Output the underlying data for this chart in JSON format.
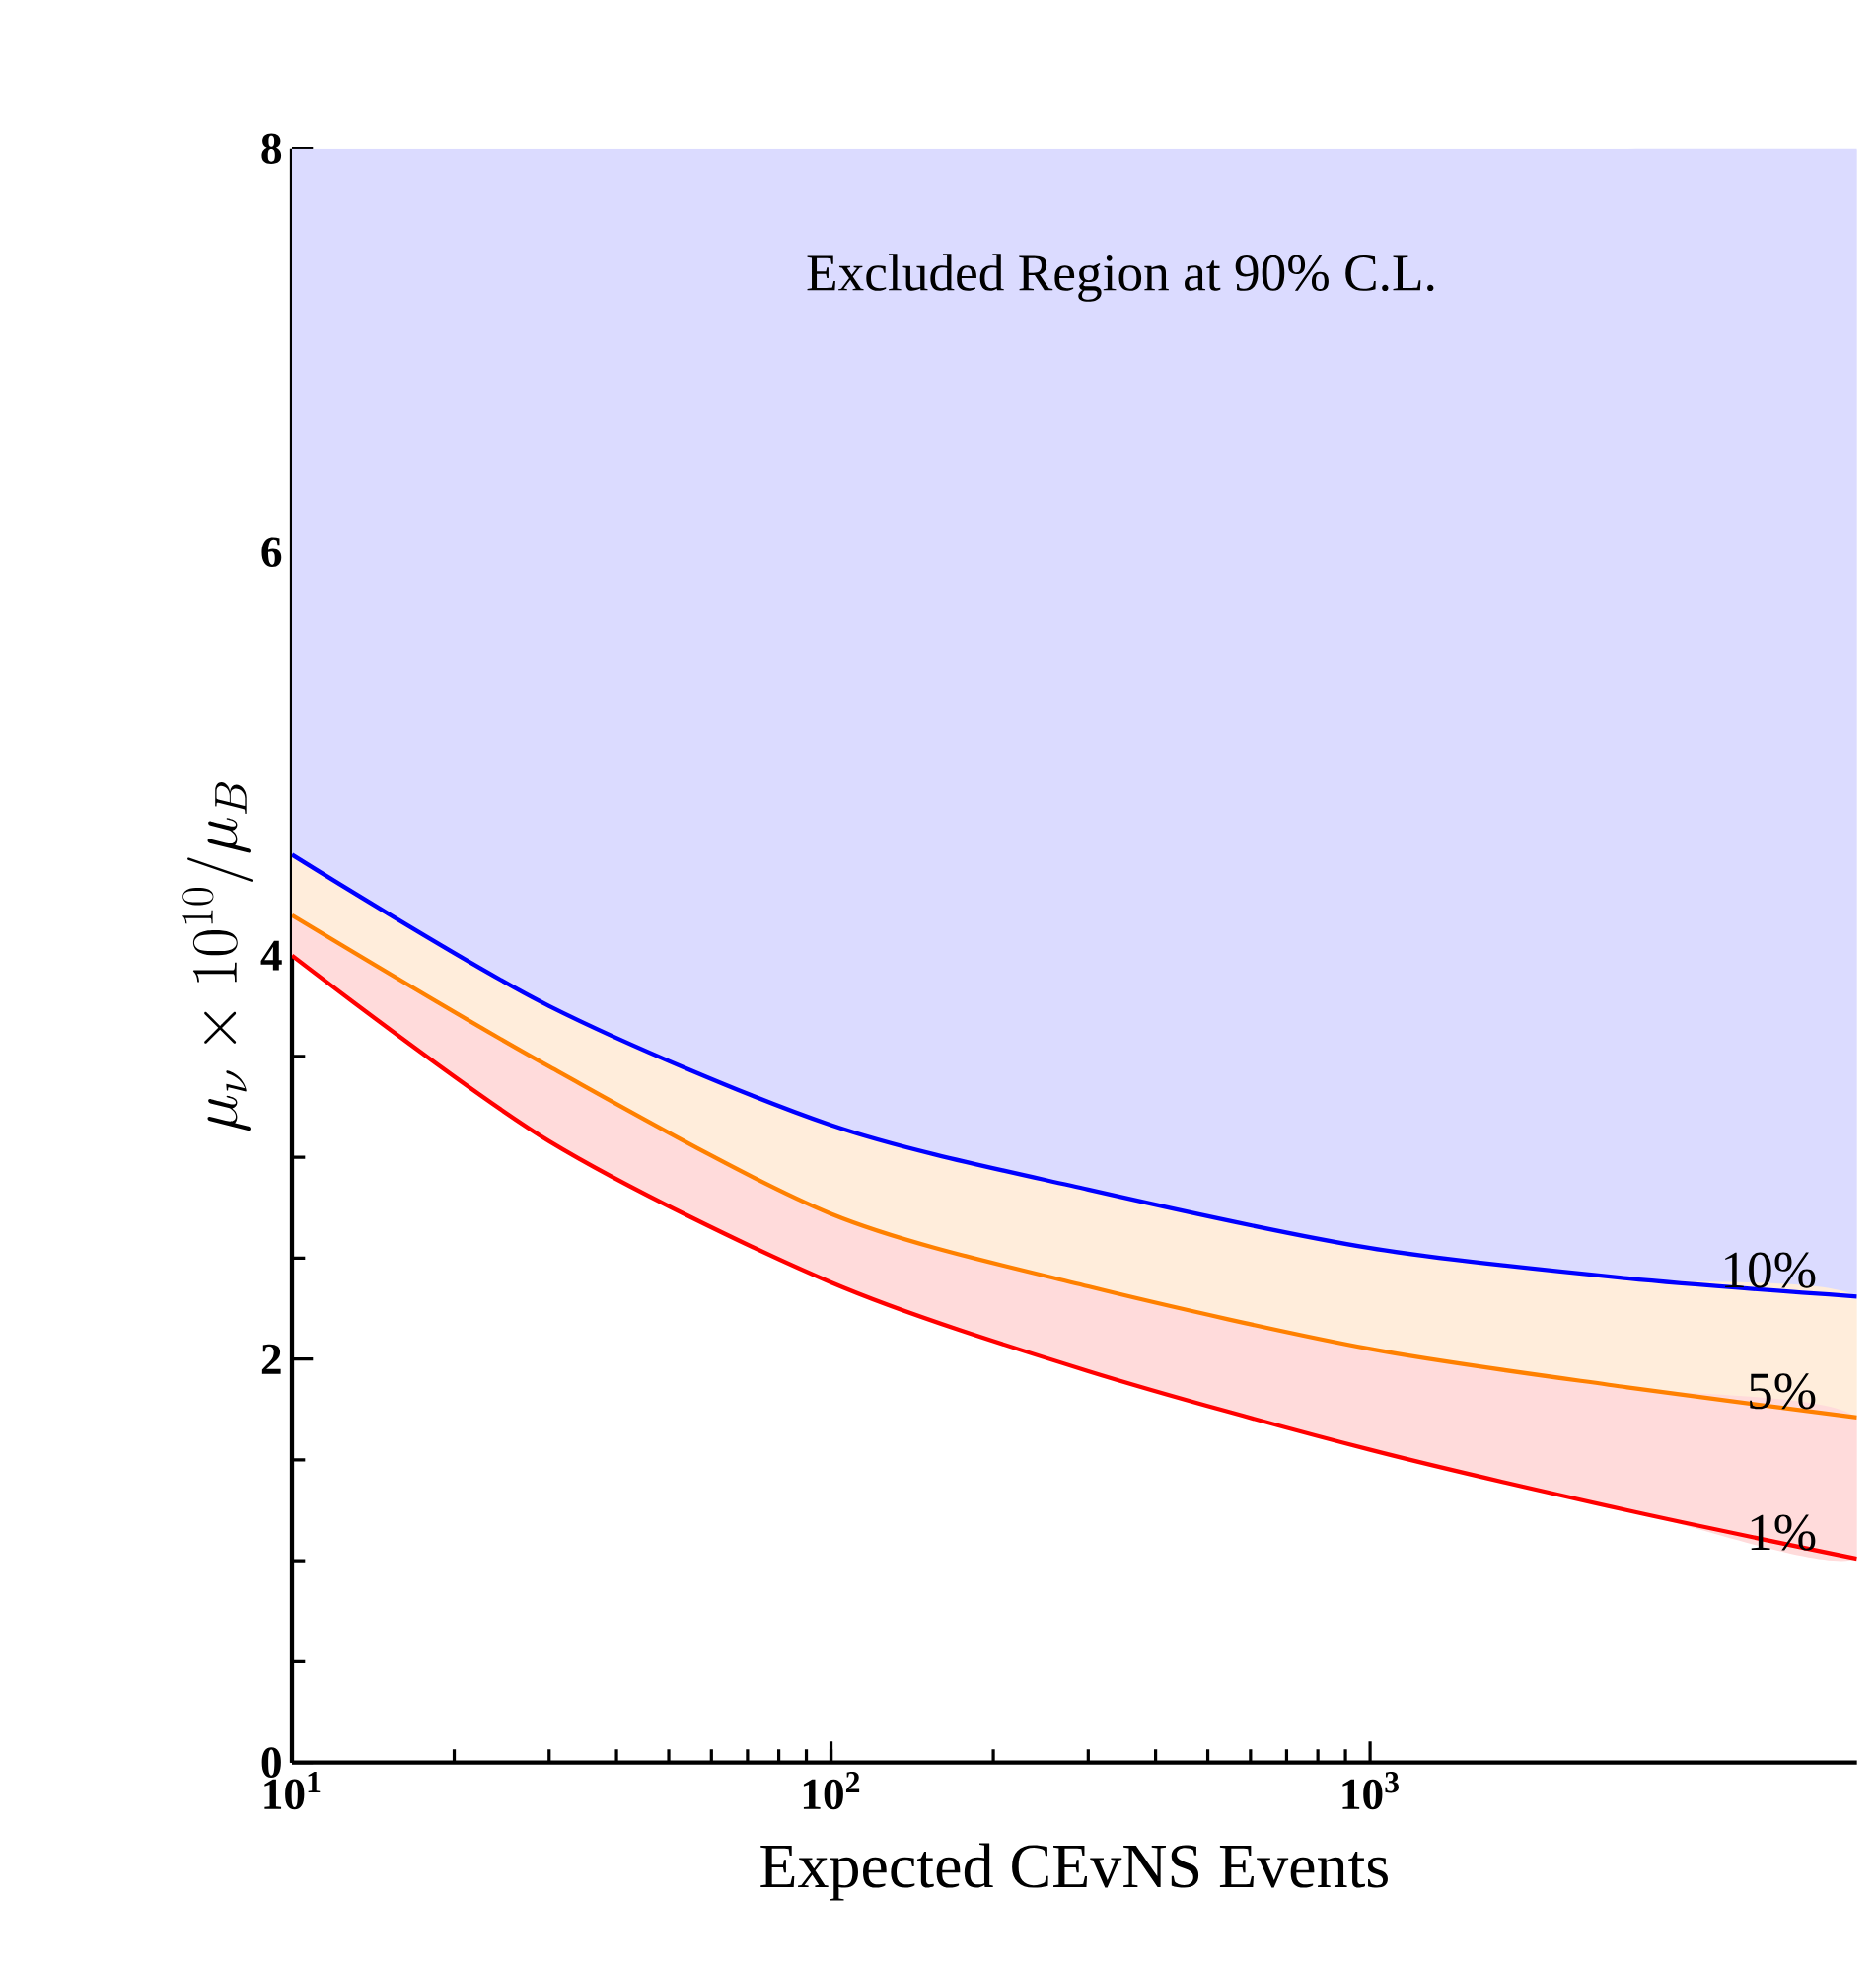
{
  "chart_data": {
    "type": "line",
    "xlabel": "Expected CEvNS Events",
    "ylabel": "\\mu_\\nu \\times 10^{10}/\\mu_B",
    "log": "x",
    "xlim": [
      10,
      8000
    ],
    "ylim": [
      0,
      8
    ],
    "xticks": [
      {
        "value": 10,
        "label": "10$^{1}$"
      },
      {
        "value": 100,
        "label": "10$^{2}$"
      },
      {
        "value": 1000,
        "label": "10$^{3}$"
      }
    ],
    "yticks": [
      0,
      2,
      4,
      6,
      8
    ],
    "x": [
      10,
      30,
      100,
      300,
      1000,
      3000,
      8000
    ],
    "series": [
      {
        "name": "10%",
        "color": "#0000ff",
        "values": [
          4.5,
          3.75,
          3.16,
          2.84,
          2.55,
          2.4,
          2.31
        ],
        "lower": [
          4.5,
          3.75,
          3.16,
          2.84,
          2.55,
          2.4,
          2.31
        ],
        "upper": [
          8,
          8,
          8,
          8,
          8,
          8,
          8
        ]
      },
      {
        "name": "5%",
        "color": "#ff8000",
        "values": [
          4.2,
          3.45,
          2.72,
          2.36,
          2.05,
          1.86,
          1.71
        ],
        "lower": [
          4.2,
          3.45,
          2.72,
          2.36,
          2.05,
          1.86,
          1.71
        ],
        "upper": [
          4.5,
          3.75,
          3.16,
          2.84,
          2.55,
          2.4,
          2.31
        ]
      },
      {
        "name": "1%",
        "color": "#ff0000",
        "values": [
          4.0,
          3.08,
          2.38,
          1.94,
          1.55,
          1.25,
          1.01
        ],
        "lower": [
          4.0,
          3.08,
          2.38,
          1.94,
          1.55,
          1.25,
          1.01
        ],
        "upper": [
          4.2,
          3.45,
          2.72,
          2.36,
          2.05,
          1.86,
          1.71
        ]
      }
    ],
    "annotations": [
      "Excluded Region at 90% C.L."
    ]
  }
}
